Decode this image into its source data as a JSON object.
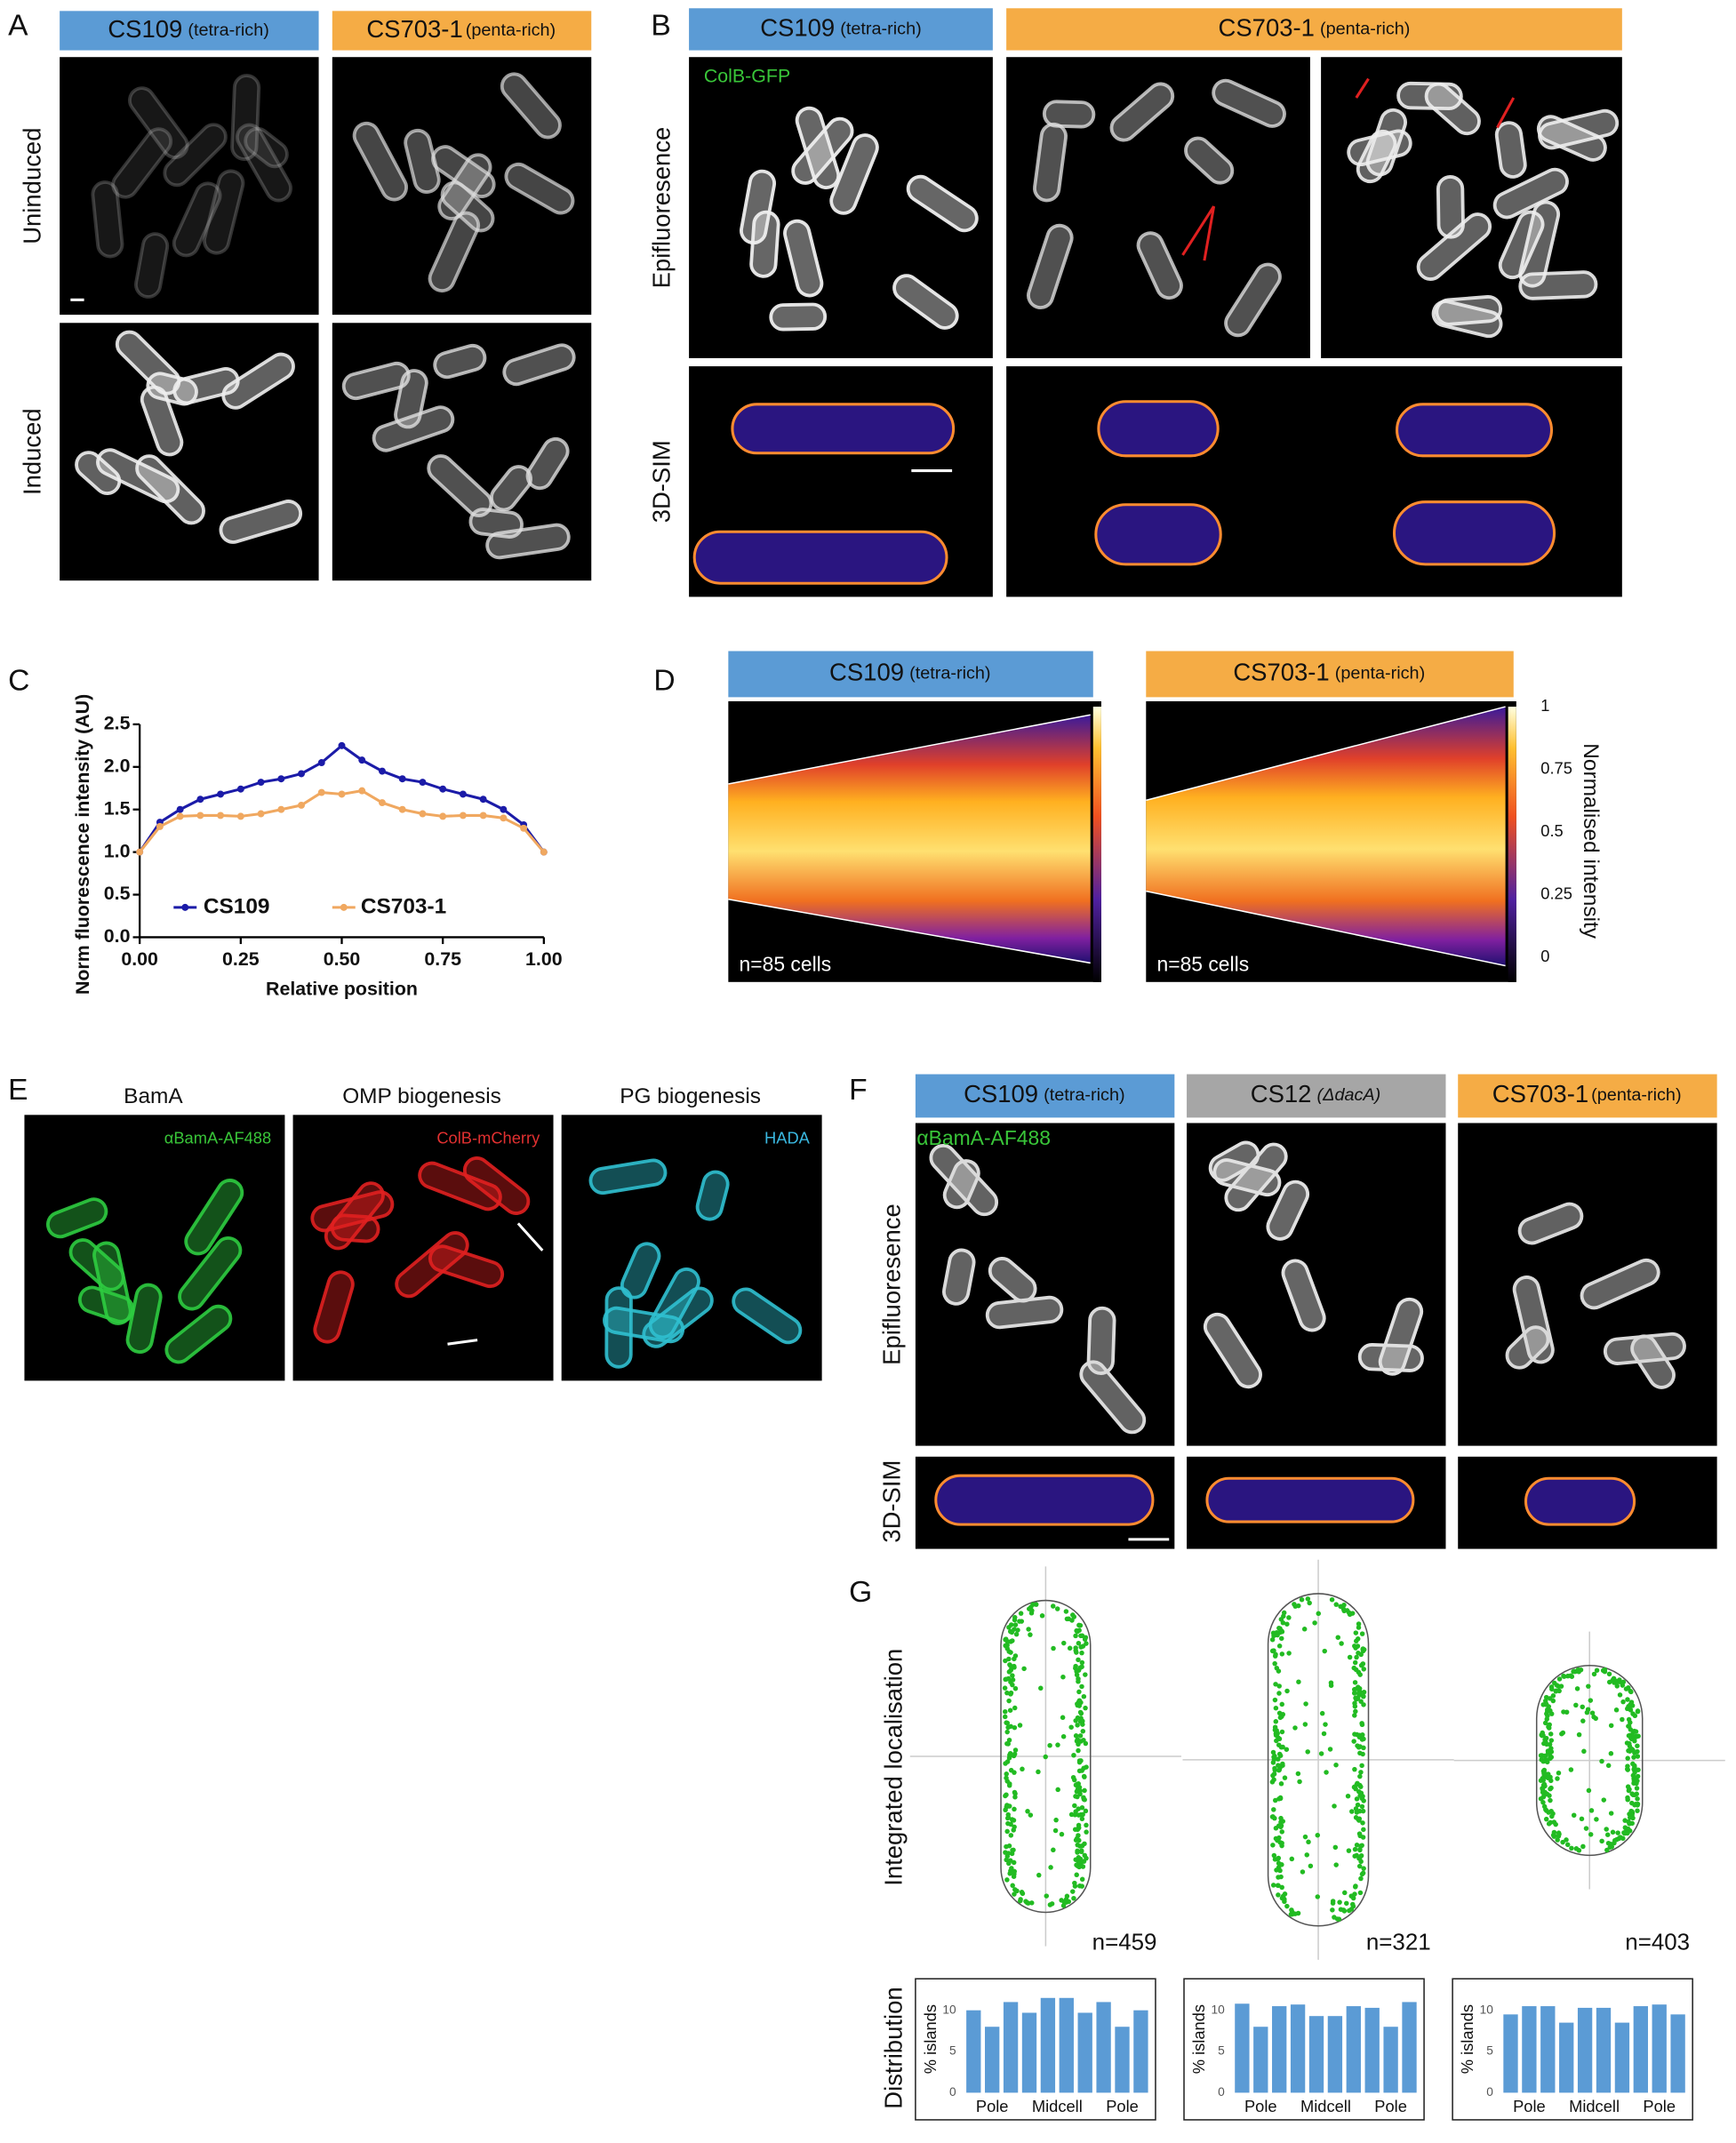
{
  "figure": {
    "A": {
      "label": "A",
      "headers": [
        {
          "name": "CS109",
          "note": "(tetra-rich)"
        },
        {
          "name": "CS703-1",
          "note": "(penta-rich)"
        }
      ],
      "rows": [
        "Uninduced",
        "Induced"
      ]
    },
    "B": {
      "label": "B",
      "headers": [
        {
          "name": "CS109",
          "note": "(tetra-rich)"
        },
        {
          "name": "CS703-1",
          "note": "(penta-rich)"
        }
      ],
      "channel": "ColB-GFP",
      "rows": [
        "Epifluoresence",
        "3D-SIM"
      ]
    },
    "C": {
      "label": "C"
    },
    "D": {
      "label": "D",
      "headers": [
        {
          "name": "CS109",
          "note": "(tetra-rich)"
        },
        {
          "name": "CS703-1",
          "note": "(penta-rich)"
        }
      ],
      "counts": [
        "n=85 cells",
        "n=85 cells"
      ],
      "colorbar_title": "Normalised intensity",
      "colorbar_ticks": [
        0,
        0.25,
        0.5,
        0.75,
        1
      ]
    },
    "E": {
      "label": "E",
      "columns": [
        {
          "title": "BamA",
          "stain": "αBamA-AF488"
        },
        {
          "title": "OMP biogenesis",
          "stain": "ColB-mCherry"
        },
        {
          "title": "PG biogenesis",
          "stain": "HADA"
        }
      ]
    },
    "F": {
      "label": "F",
      "headers": [
        {
          "name": "CS109",
          "note": "(tetra-rich)"
        },
        {
          "name": "CS12",
          "note": "(ΔdacA)"
        },
        {
          "name": "CS703-1",
          "note": "(penta-rich)"
        }
      ],
      "stain": "αBamA-AF488",
      "rows": [
        "Epifluoresence",
        "3D-SIM"
      ]
    },
    "G": {
      "label": "G",
      "rows": [
        "Integrated localisation",
        "Distribution"
      ],
      "counts": [
        "n=459",
        "n=321",
        "n=403"
      ]
    }
  },
  "chart_data": [
    {
      "type": "line",
      "xlabel": "Relative position",
      "ylabel": "Norm fluorescence intensity (AU)",
      "x": [
        0,
        0.05,
        0.1,
        0.15,
        0.2,
        0.25,
        0.3,
        0.35,
        0.4,
        0.45,
        0.5,
        0.55,
        0.6,
        0.65,
        0.7,
        0.75,
        0.8,
        0.85,
        0.9,
        0.95,
        1
      ],
      "series": [
        {
          "name": "CS109",
          "color": "#1b1ba8",
          "values": [
            1.0,
            1.35,
            1.5,
            1.62,
            1.68,
            1.74,
            1.82,
            1.86,
            1.92,
            2.05,
            2.25,
            2.08,
            1.95,
            1.86,
            1.82,
            1.74,
            1.68,
            1.62,
            1.5,
            1.32,
            1.0
          ]
        },
        {
          "name": "CS703-1",
          "color": "#f0a860",
          "values": [
            1.0,
            1.3,
            1.42,
            1.43,
            1.43,
            1.42,
            1.45,
            1.5,
            1.55,
            1.7,
            1.68,
            1.72,
            1.58,
            1.5,
            1.45,
            1.42,
            1.43,
            1.43,
            1.4,
            1.28,
            1.0
          ]
        }
      ],
      "xlim": [
        0,
        1
      ],
      "ylim": [
        0,
        2.5
      ],
      "xticks": [
        {
          "value": 0,
          "label": "0.00"
        },
        0.25,
        {
          "value": 0.5,
          "label": "0.50"
        },
        0.75,
        {
          "value": 1,
          "label": "1.00"
        }
      ],
      "yticks": [
        {
          "value": 0,
          "label": "0.0"
        },
        0.5,
        {
          "value": 1,
          "label": "1.0"
        },
        1.5,
        {
          "value": 2,
          "label": "2.0"
        },
        2.5
      ]
    },
    {
      "type": "bar",
      "ylabel": "% islands",
      "x_labels": [
        "Pole",
        "Midcell",
        "Pole"
      ],
      "color": "#5b9bd5",
      "values": [
        10,
        8,
        11,
        9.7,
        11.5,
        11.5,
        9.7,
        11,
        8,
        10
      ],
      "ylim": [
        0,
        13
      ],
      "yticks": [
        0,
        5,
        10
      ]
    },
    {
      "type": "bar",
      "ylabel": "% islands",
      "x_labels": [
        "Pole",
        "Midcell",
        "Pole"
      ],
      "color": "#5b9bd5",
      "values": [
        10.8,
        8,
        10.5,
        10.7,
        9.3,
        9.3,
        10.5,
        10.3,
        8,
        11
      ],
      "ylim": [
        0,
        13
      ],
      "yticks": [
        0,
        5,
        10
      ]
    },
    {
      "type": "bar",
      "ylabel": "% islands",
      "x_labels": [
        "Pole",
        "Midcell",
        "Pole"
      ],
      "color": "#5b9bd5",
      "values": [
        9.5,
        10.5,
        10.5,
        8.5,
        10.3,
        10.3,
        8.5,
        10.5,
        10.7,
        9.5
      ],
      "ylim": [
        0,
        13
      ],
      "yticks": [
        0,
        5,
        10
      ]
    }
  ]
}
